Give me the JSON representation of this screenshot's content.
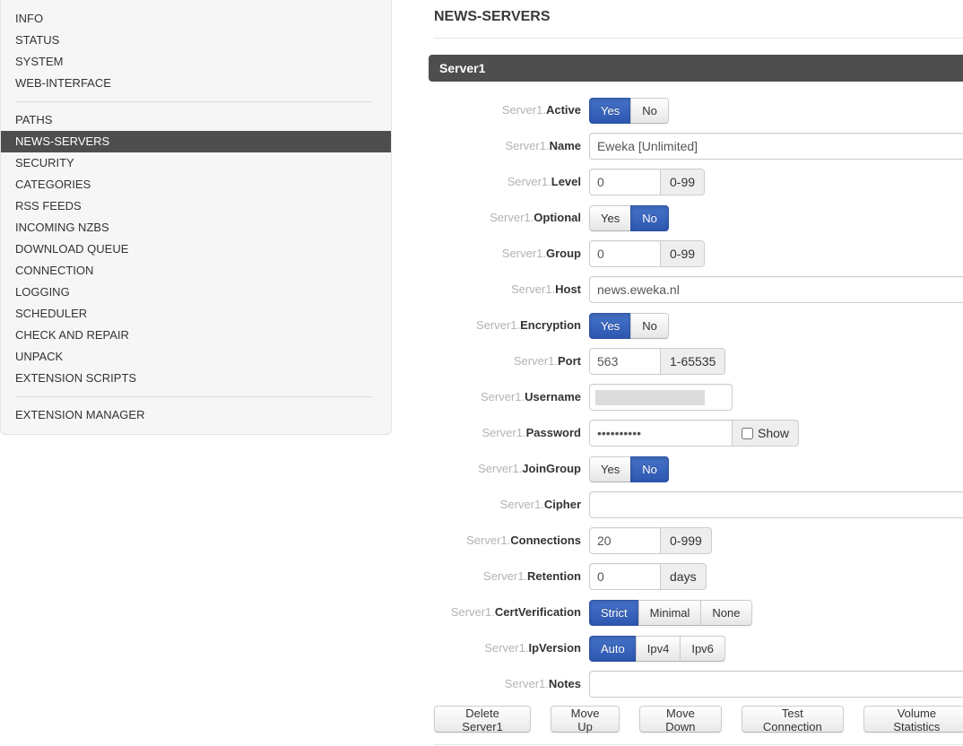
{
  "colors": {
    "dark_bar": "#4e4e4e",
    "sidebar_bg": "#f6f6f7",
    "sidebar_selected_bg": "#4e4e4e",
    "toggle_blue_top": "#4573c9",
    "toggle_blue_bottom": "#2e57b0",
    "muted_label": "#b3b3b3",
    "addon_bg": "#eeeeee",
    "input_border": "#cccccc"
  },
  "sidebar": {
    "selected": "NEWS-SERVERS",
    "groups": [
      {
        "items": [
          "INFO",
          "STATUS",
          "SYSTEM",
          "WEB-INTERFACE"
        ]
      },
      {
        "items": [
          "PATHS",
          "NEWS-SERVERS",
          "SECURITY",
          "CATEGORIES",
          "RSS FEEDS",
          "INCOMING NZBS",
          "DOWNLOAD QUEUE",
          "CONNECTION",
          "LOGGING",
          "SCHEDULER",
          "CHECK AND REPAIR",
          "UNPACK",
          "EXTENSION SCRIPTS"
        ]
      },
      {
        "items": [
          "EXTENSION MANAGER"
        ]
      }
    ]
  },
  "main": {
    "title": "NEWS-SERVERS",
    "section_header": "Server1",
    "rows": [
      {
        "key": "active",
        "prefix": "Server1.",
        "label": "Active",
        "type": "toggle",
        "options": [
          "Yes",
          "No"
        ],
        "selected": "Yes"
      },
      {
        "key": "name",
        "prefix": "Server1.",
        "label": "Name",
        "type": "text-wide",
        "value": "Eweka [Unlimited]"
      },
      {
        "key": "level",
        "prefix": "Server1.",
        "label": "Level",
        "type": "text-addon",
        "value": "0",
        "addon": "0-99"
      },
      {
        "key": "optional",
        "prefix": "Server1.",
        "label": "Optional",
        "type": "toggle",
        "options": [
          "Yes",
          "No"
        ],
        "selected": "No"
      },
      {
        "key": "group",
        "prefix": "Server1.",
        "label": "Group",
        "type": "text-addon",
        "value": "0",
        "addon": "0-99"
      },
      {
        "key": "host",
        "prefix": "Server1.",
        "label": "Host",
        "type": "text-wide",
        "value": "news.eweka.nl"
      },
      {
        "key": "encryption",
        "prefix": "Server1.",
        "label": "Encryption",
        "type": "toggle",
        "options": [
          "Yes",
          "No"
        ],
        "selected": "Yes"
      },
      {
        "key": "port",
        "prefix": "Server1.",
        "label": "Port",
        "type": "text-addon",
        "value": "563",
        "addon": "1-65535"
      },
      {
        "key": "username",
        "prefix": "Server1.",
        "label": "Username",
        "type": "text-redacted",
        "value": "",
        "redacted": true
      },
      {
        "key": "password",
        "prefix": "Server1.",
        "label": "Password",
        "type": "password",
        "value": "••••••••••",
        "checkbox_label": "Show",
        "checkbox_checked": false
      },
      {
        "key": "joingroup",
        "prefix": "Server1.",
        "label": "JoinGroup",
        "type": "toggle",
        "options": [
          "Yes",
          "No"
        ],
        "selected": "No"
      },
      {
        "key": "cipher",
        "prefix": "Server1.",
        "label": "Cipher",
        "type": "text-wide",
        "value": ""
      },
      {
        "key": "connections",
        "prefix": "Server1.",
        "label": "Connections",
        "type": "text-addon",
        "value": "20",
        "addon": "0-999"
      },
      {
        "key": "retention",
        "prefix": "Server1.",
        "label": "Retention",
        "type": "text-addon",
        "value": "0",
        "addon": "days"
      },
      {
        "key": "certverification",
        "prefix": "Server1.",
        "label": "CertVerification",
        "type": "toggle",
        "options": [
          "Strict",
          "Minimal",
          "None"
        ],
        "selected": "Strict"
      },
      {
        "key": "ipversion",
        "prefix": "Server1.",
        "label": "IpVersion",
        "type": "toggle",
        "options": [
          "Auto",
          "Ipv4",
          "Ipv6"
        ],
        "selected": "Auto"
      },
      {
        "key": "notes",
        "prefix": "Server1.",
        "label": "Notes",
        "type": "text-wide",
        "value": ""
      }
    ],
    "action_buttons": [
      "Delete Server1",
      "Move Up",
      "Move Down",
      "Test Connection",
      "Volume Statistics"
    ]
  }
}
